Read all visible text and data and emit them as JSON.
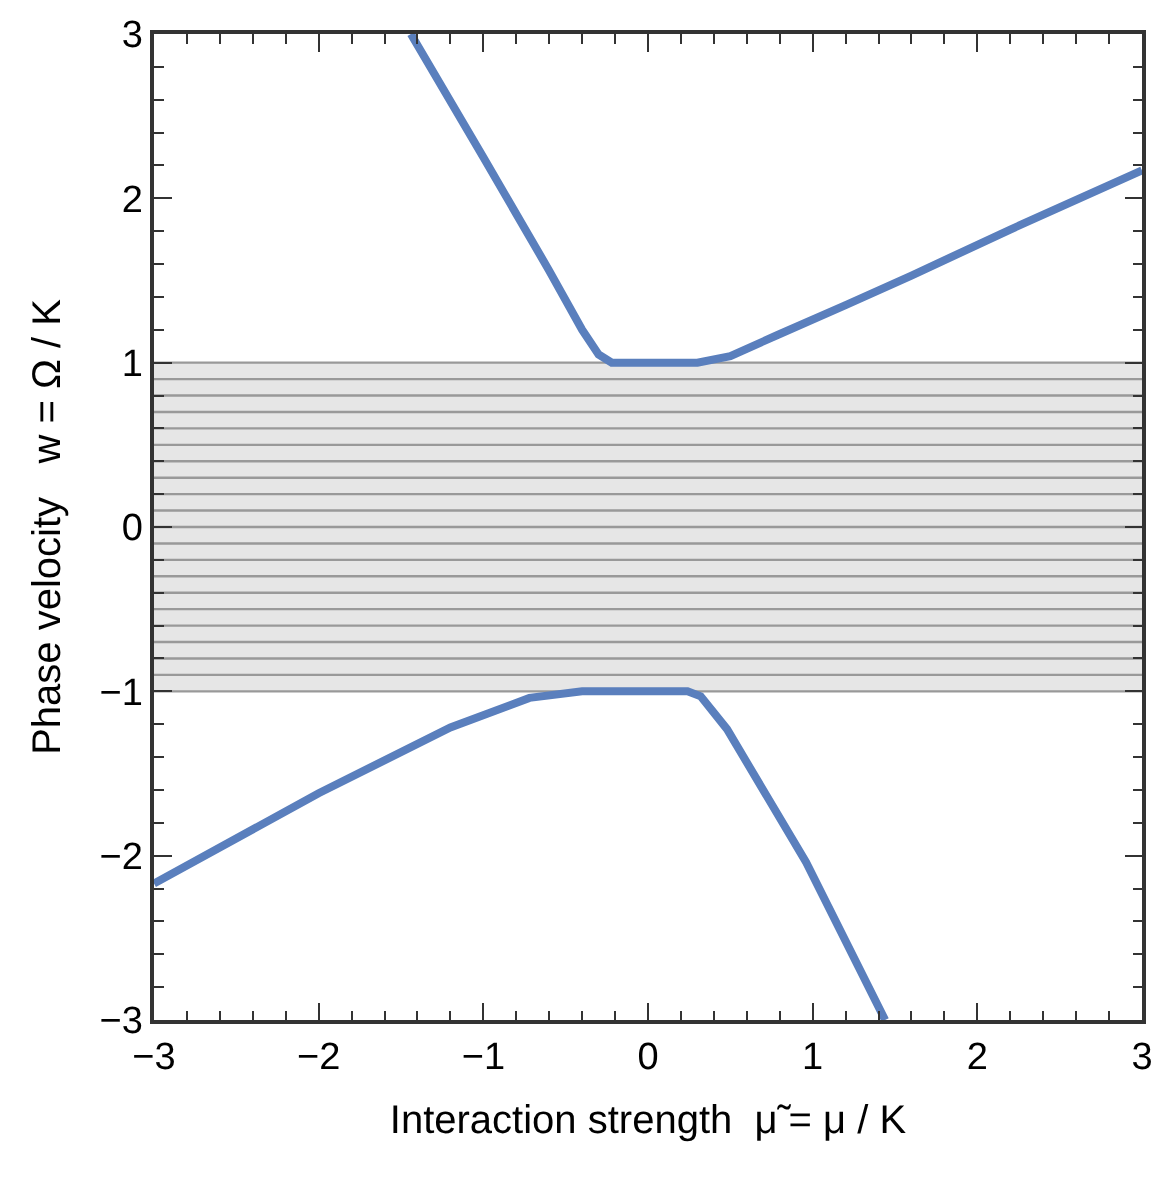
{
  "chart_data": {
    "type": "line",
    "xlabel": "Interaction strength  μ̃ = μ / K",
    "ylabel": "Phase velocity   w = Ω / K",
    "xlim": [
      -3,
      3
    ],
    "ylim": [
      -3,
      3
    ],
    "xticks": [
      -3,
      {
        "value": -2.8,
        "label": null
      },
      {
        "value": -2.6,
        "label": null
      },
      {
        "value": -2.4,
        "label": null
      },
      {
        "value": -2.2,
        "label": null
      },
      -2,
      {
        "value": -1.8,
        "label": null
      },
      {
        "value": -1.6,
        "label": null
      },
      {
        "value": -1.4,
        "label": null
      },
      {
        "value": -1.2,
        "label": null
      },
      -1,
      {
        "value": -0.8,
        "label": null
      },
      {
        "value": -0.6,
        "label": null
      },
      {
        "value": -0.4,
        "label": null
      },
      {
        "value": -0.2,
        "label": null
      },
      0,
      {
        "value": 0.2,
        "label": null
      },
      {
        "value": 0.4,
        "label": null
      },
      {
        "value": 0.6,
        "label": null
      },
      {
        "value": 0.8,
        "label": null
      },
      1,
      {
        "value": 1.2,
        "label": null
      },
      {
        "value": 1.4,
        "label": null
      },
      {
        "value": 1.6,
        "label": null
      },
      {
        "value": 1.8,
        "label": null
      },
      2,
      {
        "value": 2.2,
        "label": null
      },
      {
        "value": 2.4,
        "label": null
      },
      {
        "value": 2.6,
        "label": null
      },
      {
        "value": 2.8,
        "label": null
      },
      3
    ],
    "yticks": [
      -3,
      {
        "value": -2.8,
        "label": null
      },
      {
        "value": -2.6,
        "label": null
      },
      {
        "value": -2.4,
        "label": null
      },
      {
        "value": -2.2,
        "label": null
      },
      -2,
      {
        "value": -1.8,
        "label": null
      },
      {
        "value": -1.6,
        "label": null
      },
      {
        "value": -1.4,
        "label": null
      },
      {
        "value": -1.2,
        "label": null
      },
      -1,
      {
        "value": -0.8,
        "label": null
      },
      {
        "value": -0.6,
        "label": null
      },
      {
        "value": -0.4,
        "label": null
      },
      {
        "value": -0.2,
        "label": null
      },
      0,
      {
        "value": 0.2,
        "label": null
      },
      {
        "value": 0.4,
        "label": null
      },
      {
        "value": 0.6,
        "label": null
      },
      {
        "value": 0.8,
        "label": null
      },
      1,
      {
        "value": 1.2,
        "label": null
      },
      {
        "value": 1.4,
        "label": null
      },
      {
        "value": 1.6,
        "label": null
      },
      {
        "value": 1.8,
        "label": null
      },
      2,
      {
        "value": 2.2,
        "label": null
      },
      {
        "value": 2.4,
        "label": null
      },
      {
        "value": 2.6,
        "label": null
      },
      {
        "value": 2.8,
        "label": null
      },
      3
    ],
    "series": [
      {
        "color": "#5a7fbd",
        "x": [
          -1.44,
          -1.0,
          -0.6,
          -0.4,
          -0.3,
          -0.22,
          0.0,
          0.3,
          0.5,
          0.79,
          1.2,
          1.6,
          2.2,
          3.0
        ],
        "values": [
          3.0,
          2.25,
          1.56,
          1.2,
          1.05,
          1.0,
          1.0,
          1.0,
          1.04,
          1.17,
          1.35,
          1.53,
          1.81,
          2.17
        ]
      },
      {
        "color": "#5a7fbd",
        "x": [
          -3.0,
          -2.0,
          -1.2,
          -0.72,
          -0.4,
          0.0,
          0.24,
          0.32,
          0.48,
          0.96,
          1.44
        ],
        "values": [
          -2.17,
          -1.62,
          -1.22,
          -1.04,
          -1.0,
          -1.0,
          -1.0,
          -1.03,
          -1.23,
          -2.04,
          -3.0
        ]
      }
    ],
    "bands": [
      {
        "axis": "y",
        "from": -1,
        "to": 1,
        "color": "#e6e6e6"
      }
    ],
    "ref_lines": [
      {
        "axis": "y",
        "value": 1,
        "color": "#999999"
      },
      {
        "axis": "y",
        "value": 0.9,
        "color": "#999999"
      },
      {
        "axis": "y",
        "value": 0.8,
        "color": "#999999"
      },
      {
        "axis": "y",
        "value": 0.7,
        "color": "#999999"
      },
      {
        "axis": "y",
        "value": 0.6,
        "color": "#999999"
      },
      {
        "axis": "y",
        "value": 0.5,
        "color": "#999999"
      },
      {
        "axis": "y",
        "value": 0.4,
        "color": "#999999"
      },
      {
        "axis": "y",
        "value": 0.3,
        "color": "#999999"
      },
      {
        "axis": "y",
        "value": 0.2,
        "color": "#999999"
      },
      {
        "axis": "y",
        "value": 0.1,
        "color": "#999999"
      },
      {
        "axis": "y",
        "value": 0,
        "color": "#999999"
      },
      {
        "axis": "y",
        "value": -0.1,
        "color": "#999999"
      },
      {
        "axis": "y",
        "value": -0.2,
        "color": "#999999"
      },
      {
        "axis": "y",
        "value": -0.3,
        "color": "#999999"
      },
      {
        "axis": "y",
        "value": -0.4,
        "color": "#999999"
      },
      {
        "axis": "y",
        "value": -0.5,
        "color": "#999999"
      },
      {
        "axis": "y",
        "value": -0.6,
        "color": "#999999"
      },
      {
        "axis": "y",
        "value": -0.7,
        "color": "#999999"
      },
      {
        "axis": "y",
        "value": -0.8,
        "color": "#999999"
      },
      {
        "axis": "y",
        "value": -0.9,
        "color": "#999999"
      },
      {
        "axis": "y",
        "value": -1,
        "color": "#999999"
      }
    ],
    "marker": "none",
    "line_style": "solid"
  }
}
